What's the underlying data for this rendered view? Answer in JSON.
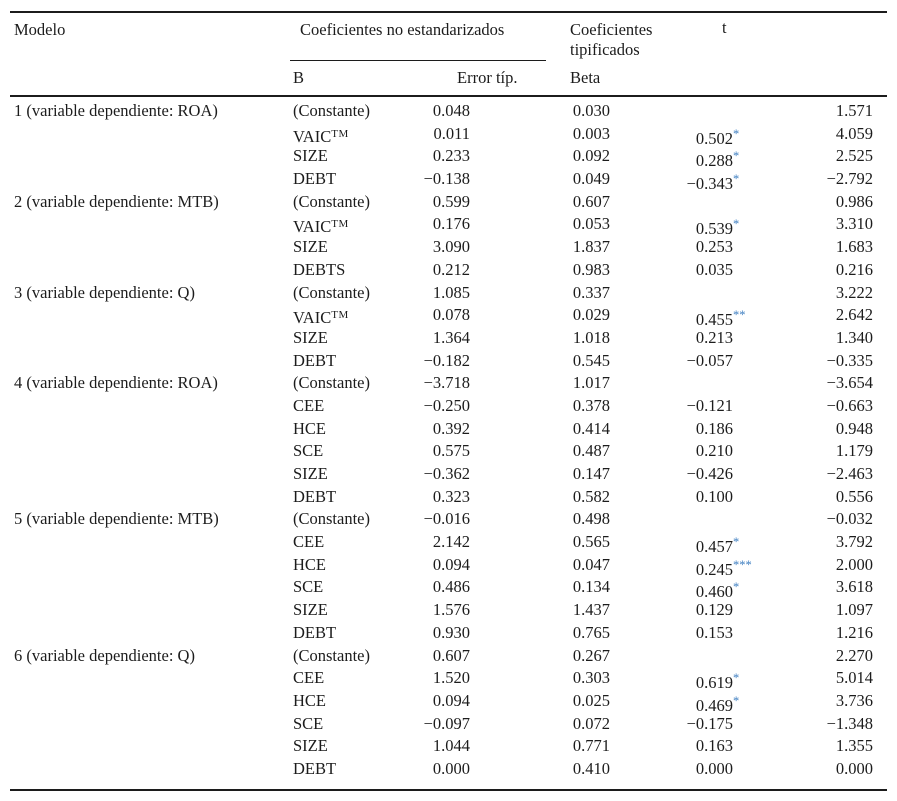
{
  "table": {
    "header": {
      "modelo": "Modelo",
      "group_unstd": "Coeficientes no estandarizados",
      "group_std": "Coeficientes tipificados",
      "t": "t",
      "sub_b": "B",
      "sub_error": "Error típ.",
      "sub_beta": "Beta"
    },
    "star_color": "#3f7fc1",
    "models": [
      {
        "label": "1 (variable dependiente: ROA)",
        "rows": [
          {
            "var": "(Constante)",
            "var_sup": "",
            "b": "0.048",
            "se": "0.030",
            "beta": "",
            "stars": "",
            "t": "1.571"
          },
          {
            "var": "VAIC",
            "var_sup": "TM",
            "b": "0.011",
            "se": "0.003",
            "beta": "0.502",
            "stars": "*",
            "t": "4.059"
          },
          {
            "var": "SIZE",
            "var_sup": "",
            "b": "0.233",
            "se": "0.092",
            "beta": "0.288",
            "stars": "*",
            "t": "2.525"
          },
          {
            "var": "DEBT",
            "var_sup": "",
            "b": "−0.138",
            "se": "0.049",
            "beta": "−0.343",
            "stars": "*",
            "t": "−2.792"
          }
        ]
      },
      {
        "label": "2 (variable dependiente: MTB)",
        "rows": [
          {
            "var": "(Constante)",
            "var_sup": "",
            "b": "0.599",
            "se": "0.607",
            "beta": "",
            "stars": "",
            "t": "0.986"
          },
          {
            "var": "VAIC",
            "var_sup": "TM",
            "b": "0.176",
            "se": "0.053",
            "beta": "0.539",
            "stars": "*",
            "t": "3.310"
          },
          {
            "var": "SIZE",
            "var_sup": "",
            "b": "3.090",
            "se": "1.837",
            "beta": "0.253",
            "stars": "",
            "t": "1.683"
          },
          {
            "var": "DEBTS",
            "var_sup": "",
            "b": "0.212",
            "se": "0.983",
            "beta": "0.035",
            "stars": "",
            "t": "0.216"
          }
        ]
      },
      {
        "label": "3 (variable dependiente: Q)",
        "rows": [
          {
            "var": "(Constante)",
            "var_sup": "",
            "b": "1.085",
            "se": "0.337",
            "beta": "",
            "stars": "",
            "t": "3.222"
          },
          {
            "var": "VAIC",
            "var_sup": "TM",
            "b": "0.078",
            "se": "0.029",
            "beta": "0.455",
            "stars": "**",
            "t": "2.642"
          },
          {
            "var": "SIZE",
            "var_sup": "",
            "b": "1.364",
            "se": "1.018",
            "beta": "0.213",
            "stars": "",
            "t": "1.340"
          },
          {
            "var": "DEBT",
            "var_sup": "",
            "b": "−0.182",
            "se": "0.545",
            "beta": "−0.057",
            "stars": "",
            "t": "−0.335"
          }
        ]
      },
      {
        "label": "4 (variable dependiente: ROA)",
        "rows": [
          {
            "var": "(Constante)",
            "var_sup": "",
            "b": "−3.718",
            "se": "1.017",
            "beta": "",
            "stars": "",
            "t": "−3.654"
          },
          {
            "var": "CEE",
            "var_sup": "",
            "b": "−0.250",
            "se": "0.378",
            "beta": "−0.121",
            "stars": "",
            "t": "−0.663"
          },
          {
            "var": "HCE",
            "var_sup": "",
            "b": "0.392",
            "se": "0.414",
            "beta": "0.186",
            "stars": "",
            "t": "0.948"
          },
          {
            "var": "SCE",
            "var_sup": "",
            "b": "0.575",
            "se": "0.487",
            "beta": "0.210",
            "stars": "",
            "t": "1.179"
          },
          {
            "var": "SIZE",
            "var_sup": "",
            "b": "−0.362",
            "se": "0.147",
            "beta": "−0.426",
            "stars": "",
            "t": "−2.463"
          },
          {
            "var": "DEBT",
            "var_sup": "",
            "b": "0.323",
            "se": "0.582",
            "beta": "0.100",
            "stars": "",
            "t": "0.556"
          }
        ]
      },
      {
        "label": "5 (variable dependiente: MTB)",
        "rows": [
          {
            "var": "(Constante)",
            "var_sup": "",
            "b": "−0.016",
            "se": "0.498",
            "beta": "",
            "stars": "",
            "t": "−0.032"
          },
          {
            "var": "CEE",
            "var_sup": "",
            "b": "2.142",
            "se": "0.565",
            "beta": "0.457",
            "stars": "*",
            "t": "3.792"
          },
          {
            "var": "HCE",
            "var_sup": "",
            "b": "0.094",
            "se": "0.047",
            "beta": "0.245",
            "stars": "***",
            "t": "2.000"
          },
          {
            "var": "SCE",
            "var_sup": "",
            "b": "0.486",
            "se": "0.134",
            "beta": "0.460",
            "stars": "*",
            "t": "3.618"
          },
          {
            "var": "SIZE",
            "var_sup": "",
            "b": "1.576",
            "se": "1.437",
            "beta": "0.129",
            "stars": "",
            "t": "1.097"
          },
          {
            "var": "DEBT",
            "var_sup": "",
            "b": "0.930",
            "se": "0.765",
            "beta": "0.153",
            "stars": "",
            "t": "1.216"
          }
        ]
      },
      {
        "label": "6 (variable dependiente: Q)",
        "rows": [
          {
            "var": "(Constante)",
            "var_sup": "",
            "b": "0.607",
            "se": "0.267",
            "beta": "",
            "stars": "",
            "t": "2.270"
          },
          {
            "var": "CEE",
            "var_sup": "",
            "b": "1.520",
            "se": "0.303",
            "beta": "0.619",
            "stars": "*",
            "t": "5.014"
          },
          {
            "var": "HCE",
            "var_sup": "",
            "b": "0.094",
            "se": "0.025",
            "beta": "0.469",
            "stars": "*",
            "t": "3.736"
          },
          {
            "var": "SCE",
            "var_sup": "",
            "b": "−0.097",
            "se": "0.072",
            "beta": "−0.175",
            "stars": "",
            "t": "−1.348"
          },
          {
            "var": "SIZE",
            "var_sup": "",
            "b": "1.044",
            "se": "0.771",
            "beta": "0.163",
            "stars": "",
            "t": "1.355"
          },
          {
            "var": "DEBT",
            "var_sup": "",
            "b": "0.000",
            "se": "0.410",
            "beta": "0.000",
            "stars": "",
            "t": "0.000"
          }
        ]
      }
    ]
  }
}
